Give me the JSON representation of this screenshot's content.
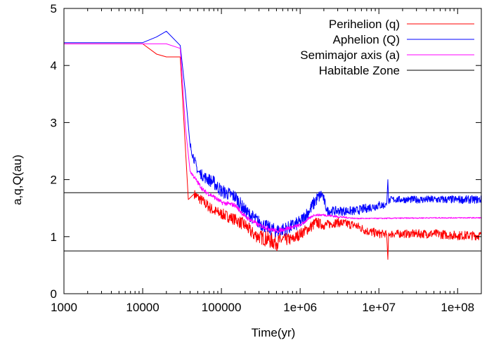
{
  "chart_data": {
    "type": "line",
    "xlabel": "Time(yr)",
    "ylabel": "a,q,Q(au)",
    "xscale": "log",
    "xlim": [
      1000,
      200000000
    ],
    "ylim": [
      0,
      5
    ],
    "x_ticks": [
      {
        "value": 1000,
        "label": "1000"
      },
      {
        "value": 10000,
        "label": "10000"
      },
      {
        "value": 100000,
        "label": "100000"
      },
      {
        "value": 1000000,
        "label": "1e+06"
      },
      {
        "value": 10000000,
        "label": "1e+07"
      },
      {
        "value": 100000000,
        "label": "1e+08"
      }
    ],
    "y_ticks": [
      {
        "value": 0,
        "label": "0"
      },
      {
        "value": 1,
        "label": "1"
      },
      {
        "value": 2,
        "label": "2"
      },
      {
        "value": 3,
        "label": "3"
      },
      {
        "value": 4,
        "label": "4"
      },
      {
        "value": 5,
        "label": "5"
      }
    ],
    "legend_position": "top-right",
    "series": [
      {
        "name": "Perihelion (q)",
        "color": "#ff0000",
        "x": [
          1000,
          10000,
          15000,
          20000,
          30000,
          38000,
          45000,
          60000,
          80000,
          100000,
          150000,
          200000,
          250000,
          300000,
          400000,
          500000,
          600000,
          800000,
          1000000,
          1300000,
          1600000,
          2000000,
          3000000,
          5000000,
          7000000,
          10000000,
          12500000,
          13000000,
          13300000,
          14000000,
          20000000,
          50000000,
          100000000,
          200000000
        ],
        "y": [
          4.38,
          4.38,
          4.2,
          4.15,
          4.15,
          1.65,
          1.75,
          1.6,
          1.45,
          1.4,
          1.3,
          1.2,
          1.05,
          1.0,
          0.95,
          0.9,
          0.95,
          0.95,
          1.05,
          1.15,
          1.25,
          1.2,
          1.25,
          1.2,
          1.1,
          1.05,
          1.05,
          0.6,
          1.05,
          1.05,
          1.05,
          1.05,
          1.02,
          1.02
        ],
        "noise": [
          0,
          0,
          0,
          0,
          0,
          0,
          0.08,
          0.1,
          0.1,
          0.1,
          0.1,
          0.12,
          0.12,
          0.12,
          0.15,
          0.15,
          0.12,
          0.1,
          0.1,
          0.1,
          0.1,
          0.08,
          0.08,
          0.08,
          0.08,
          0.08,
          0.06,
          0,
          0.06,
          0.07,
          0.07,
          0.08,
          0.08,
          0.08
        ]
      },
      {
        "name": "Aphelion (Q)",
        "color": "#0000ff",
        "x": [
          1000,
          10000,
          15000,
          20000,
          30000,
          35000,
          40000,
          50000,
          60000,
          80000,
          100000,
          150000,
          200000,
          300000,
          400000,
          500000,
          700000,
          1000000,
          1300000,
          1600000,
          1900000,
          2200000,
          3000000,
          5000000,
          7000000,
          10000000,
          12500000,
          13000000,
          13300000,
          14000000,
          20000000,
          50000000,
          100000000,
          200000000
        ],
        "y": [
          4.4,
          4.4,
          4.5,
          4.6,
          4.35,
          3.5,
          2.6,
          2.15,
          2.05,
          1.95,
          1.8,
          1.7,
          1.45,
          1.25,
          1.15,
          1.1,
          1.15,
          1.25,
          1.45,
          1.65,
          1.75,
          1.45,
          1.45,
          1.45,
          1.5,
          1.55,
          1.55,
          2.0,
          1.6,
          1.65,
          1.65,
          1.65,
          1.65,
          1.65
        ],
        "noise": [
          0,
          0,
          0,
          0,
          0,
          0,
          0.08,
          0.08,
          0.1,
          0.12,
          0.12,
          0.12,
          0.12,
          0.12,
          0.12,
          0.12,
          0.12,
          0.12,
          0.12,
          0.12,
          0.1,
          0.08,
          0.08,
          0.08,
          0.08,
          0.08,
          0.06,
          0,
          0.06,
          0.06,
          0.06,
          0.07,
          0.07,
          0.07
        ]
      },
      {
        "name": "Semimajor axis (a)",
        "color": "#ff00ff",
        "x": [
          1000,
          10000,
          20000,
          30000,
          35000,
          40000,
          50000,
          60000,
          80000,
          100000,
          150000,
          200000,
          300000,
          500000,
          1000000,
          1500000,
          2000000,
          3000000,
          5000000,
          10000000,
          50000000,
          100000000,
          200000000
        ],
        "y": [
          4.38,
          4.38,
          4.38,
          4.3,
          2.9,
          2.15,
          1.95,
          1.8,
          1.7,
          1.6,
          1.55,
          1.35,
          1.2,
          1.1,
          1.2,
          1.38,
          1.38,
          1.35,
          1.32,
          1.32,
          1.33,
          1.33,
          1.33
        ],
        "noise": [
          0,
          0,
          0,
          0,
          0,
          0.03,
          0.04,
          0.04,
          0.04,
          0.04,
          0.04,
          0.04,
          0.04,
          0.04,
          0.03,
          0.02,
          0.02,
          0.02,
          0.01,
          0.01,
          0.01,
          0.01,
          0.01
        ]
      },
      {
        "name": "Habitable Zone",
        "color": "#000000",
        "lines": [
          0.75,
          1.77
        ]
      }
    ]
  }
}
